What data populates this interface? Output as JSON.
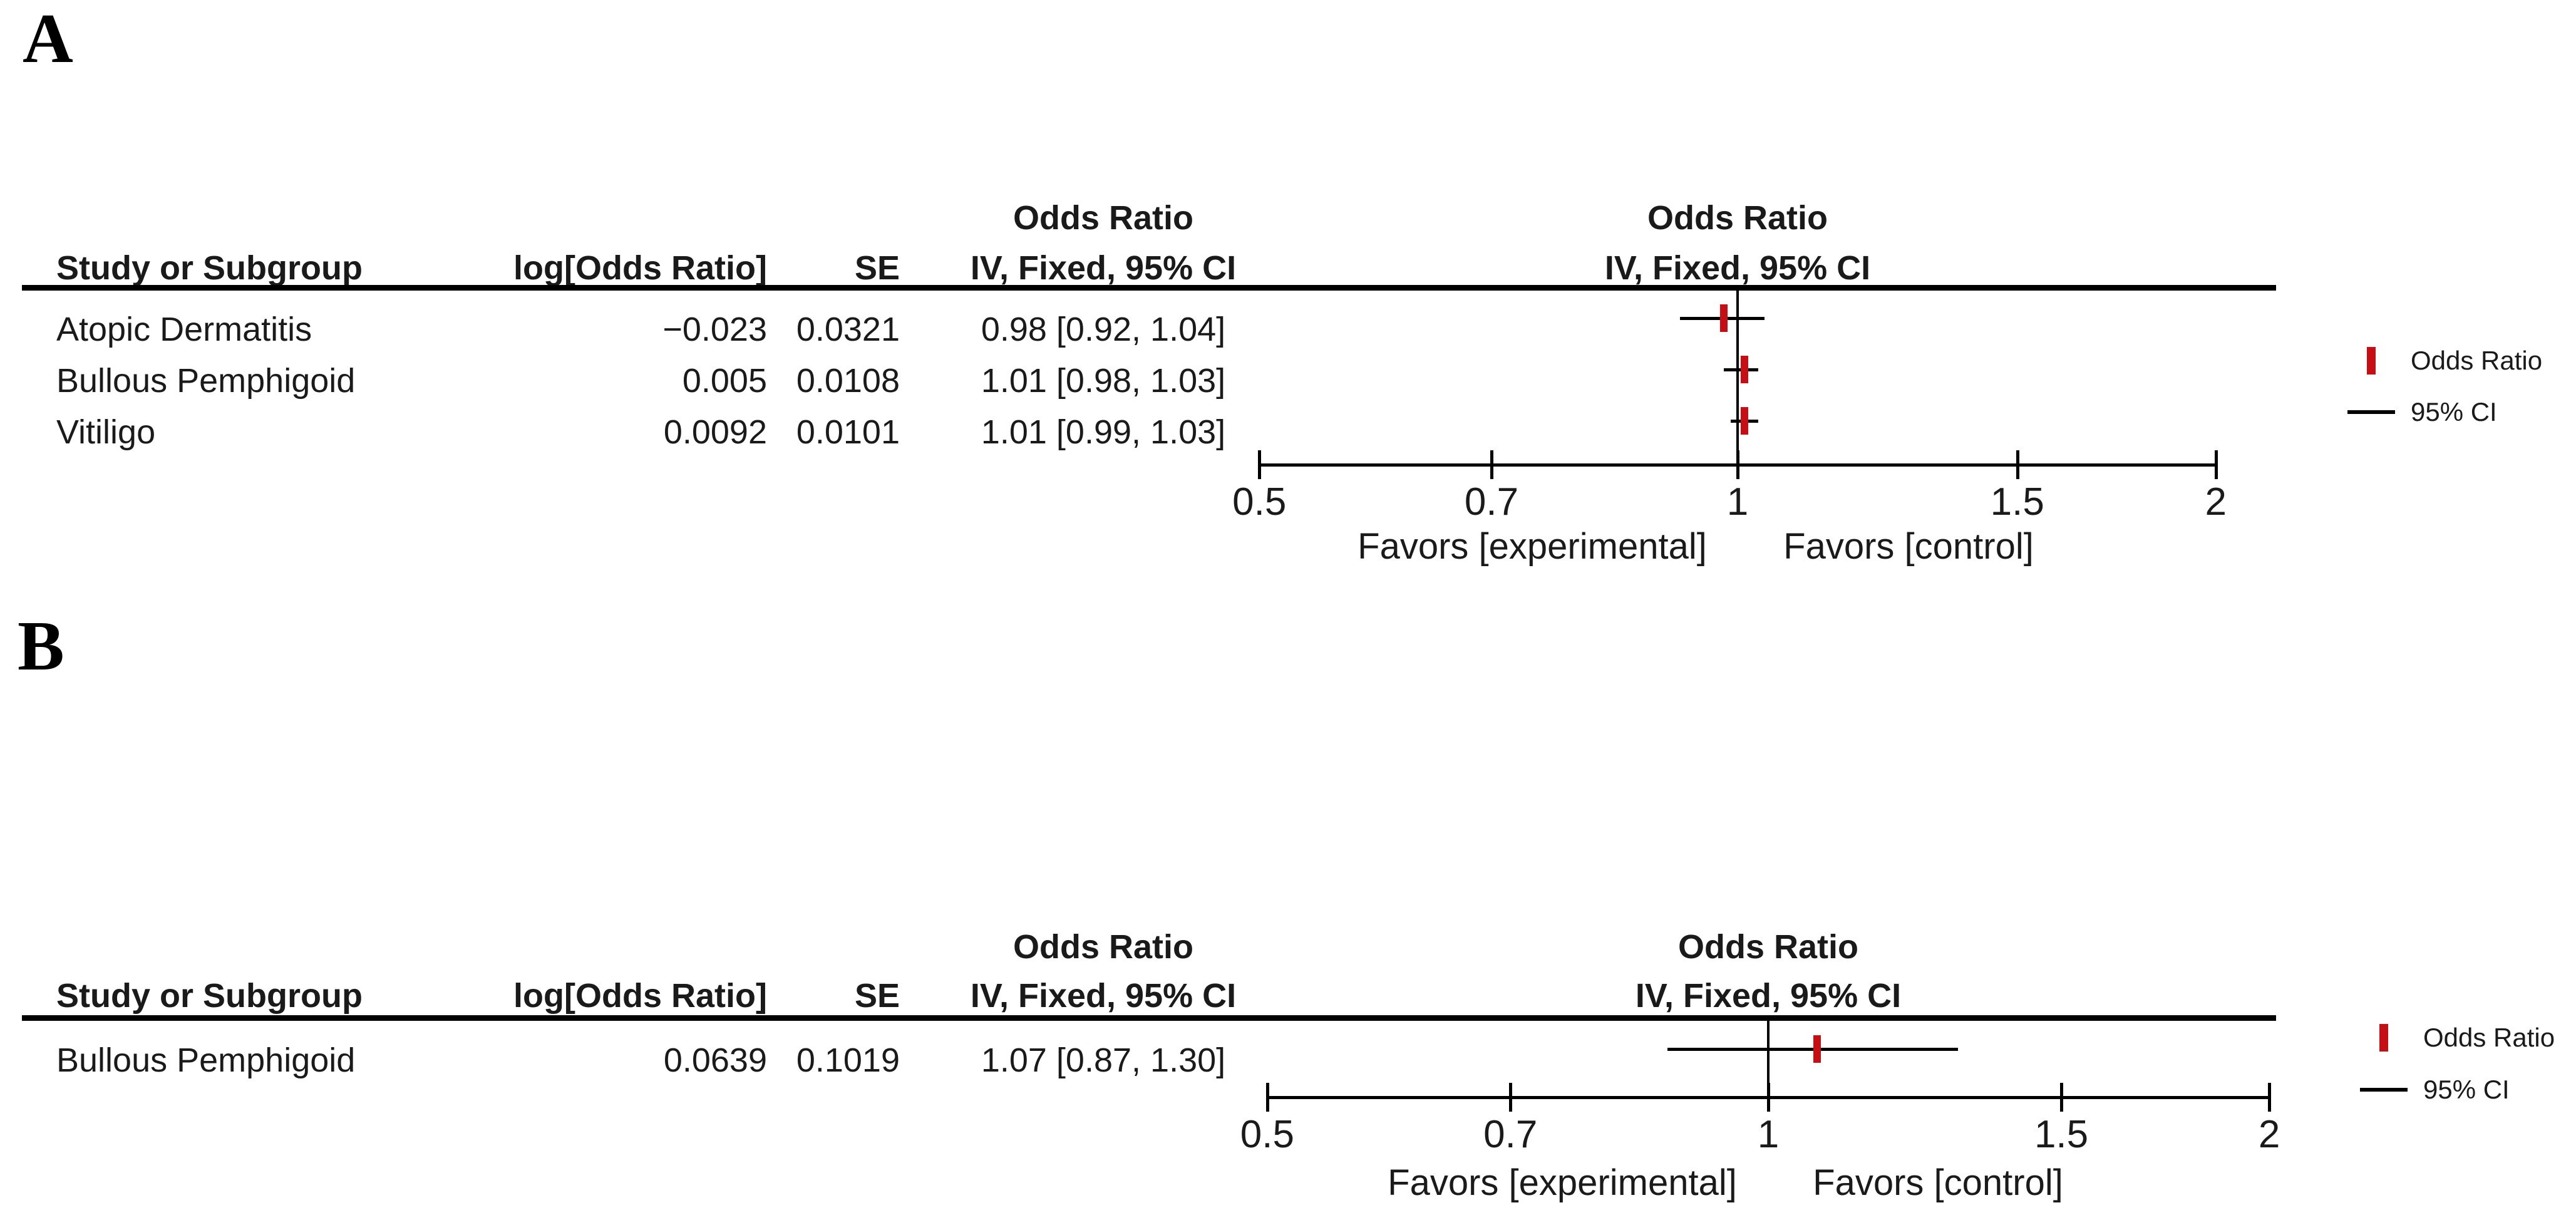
{
  "colors": {
    "marker_red": "#c50f14",
    "line_black": "#000000",
    "text": "#1a1a1a",
    "background": "#ffffff"
  },
  "panels": [
    {
      "label": "A",
      "table": {
        "header": {
          "study": "Study or Subgroup",
          "log_or": "log[Odds Ratio]",
          "se": "SE",
          "effect_top": "Odds Ratio",
          "effect_bottom": "IV, Fixed, 95% CI"
        },
        "rows": [
          {
            "study": "Atopic Dermatitis",
            "log_or": "−0.023",
            "se": "0.0321",
            "effect": "0.98 [0.92, 1.04]"
          },
          {
            "study": "Bullous Pemphigoid",
            "log_or": "0.005",
            "se": "0.0108",
            "effect": "1.01 [0.98, 1.03]"
          },
          {
            "study": "Vitiligo",
            "log_or": "0.0092",
            "se": "0.0101",
            "effect": "1.01 [0.99, 1.03]"
          }
        ]
      },
      "plot": {
        "header_top": "Odds Ratio",
        "header_bottom": "IV, Fixed, 95% CI",
        "favors_left": "Favors [experimental]",
        "favors_right": "Favors [control]"
      },
      "legend": {
        "or_label": "Odds Ratio",
        "ci_label": "95% CI"
      }
    },
    {
      "label": "B",
      "table": {
        "header": {
          "study": "Study or Subgroup",
          "log_or": "log[Odds Ratio]",
          "se": "SE",
          "effect_top": "Odds Ratio",
          "effect_bottom": "IV, Fixed, 95% CI"
        },
        "rows": [
          {
            "study": "Bullous Pemphigoid",
            "log_or": "0.0639",
            "se": "0.1019",
            "effect": "1.07 [0.87, 1.30]"
          }
        ]
      },
      "plot": {
        "header_top": "Odds Ratio",
        "header_bottom": "IV, Fixed, 95% CI",
        "favors_left": "Favors [experimental]",
        "favors_right": "Favors [control]"
      },
      "legend": {
        "or_label": "Odds Ratio",
        "ci_label": "95% CI"
      }
    }
  ],
  "chart_data": [
    {
      "type": "scatter",
      "subtype": "forest_plot",
      "panel": "A",
      "title": "Odds Ratio",
      "effect_model": "IV, Fixed, 95% CI",
      "x_scale": "log",
      "xlim": [
        0.5,
        2
      ],
      "x_ticks": [
        0.5,
        0.7,
        1,
        1.5,
        2
      ],
      "x_tick_labels": [
        "0.5",
        "0.7",
        "1",
        "1.5",
        "2"
      ],
      "xlabel_left": "Favors [experimental]",
      "xlabel_right": "Favors [control]",
      "legend": [
        "Odds Ratio",
        "95% CI"
      ],
      "grid": false,
      "categories": [
        "Atopic Dermatitis",
        "Bullous Pemphigoid",
        "Vitiligo"
      ],
      "series": [
        {
          "study": "Atopic Dermatitis",
          "log_or": -0.023,
          "se": 0.0321,
          "or": 0.98,
          "ci_low": 0.92,
          "ci_high": 1.04
        },
        {
          "study": "Bullous Pemphigoid",
          "log_or": 0.005,
          "se": 0.0108,
          "or": 1.01,
          "ci_low": 0.98,
          "ci_high": 1.03
        },
        {
          "study": "Vitiligo",
          "log_or": 0.0092,
          "se": 0.0101,
          "or": 1.01,
          "ci_low": 0.99,
          "ci_high": 1.03
        }
      ]
    },
    {
      "type": "scatter",
      "subtype": "forest_plot",
      "panel": "B",
      "title": "Odds Ratio",
      "effect_model": "IV, Fixed, 95% CI",
      "x_scale": "log",
      "xlim": [
        0.5,
        2
      ],
      "x_ticks": [
        0.5,
        0.7,
        1,
        1.5,
        2
      ],
      "x_tick_labels": [
        "0.5",
        "0.7",
        "1",
        "1.5",
        "2"
      ],
      "xlabel_left": "Favors [experimental]",
      "xlabel_right": "Favors [control]",
      "legend": [
        "Odds Ratio",
        "95% CI"
      ],
      "grid": false,
      "categories": [
        "Bullous Pemphigoid"
      ],
      "series": [
        {
          "study": "Bullous Pemphigoid",
          "log_or": 0.0639,
          "se": 0.1019,
          "or": 1.07,
          "ci_low": 0.87,
          "ci_high": 1.3
        }
      ]
    }
  ]
}
